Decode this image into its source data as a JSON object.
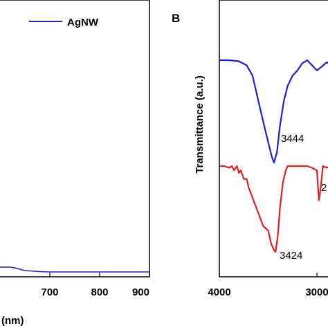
{
  "chart_data": [
    {
      "type": "line",
      "panel": "A",
      "xlabel": "(nm)",
      "xlim": [
        600,
        900
      ],
      "xticks": [
        "700",
        "800",
        "900"
      ],
      "legend": {
        "placement": "top-right",
        "entries": [
          "AgNW"
        ]
      },
      "series": [
        {
          "name": "AgNW",
          "color": "#1f1fd0",
          "points": [
            [
              600,
              0.14
            ],
            [
              620,
              0.14
            ],
            [
              630,
              0.13
            ],
            [
              640,
              0.11
            ],
            [
              650,
              0.09
            ],
            [
              660,
              0.085
            ],
            [
              680,
              0.075
            ],
            [
              700,
              0.07
            ],
            [
              750,
              0.07
            ],
            [
              800,
              0.07
            ],
            [
              850,
              0.07
            ],
            [
              900,
              0.07
            ]
          ]
        }
      ]
    },
    {
      "type": "line",
      "panel": "B",
      "panel_label": "B",
      "ylabel": "Transmittance (a.u.)",
      "xlim": [
        4000,
        2800
      ],
      "xticks": [
        "4000",
        "3000"
      ],
      "annotations": [
        "3444",
        "3424",
        "2"
      ],
      "series": [
        {
          "color": "#1f1fd0",
          "points": [
            [
              4000,
              1.0
            ],
            [
              3900,
              1.0
            ],
            [
              3800,
              0.99
            ],
            [
              3720,
              0.95
            ],
            [
              3660,
              0.85
            ],
            [
              3600,
              0.6
            ],
            [
              3550,
              0.4
            ],
            [
              3500,
              0.2
            ],
            [
              3460,
              0.05
            ],
            [
              3440,
              0.0
            ],
            [
              3410,
              0.1
            ],
            [
              3380,
              0.35
            ],
            [
              3340,
              0.6
            ],
            [
              3300,
              0.75
            ],
            [
              3250,
              0.85
            ],
            [
              3200,
              0.9
            ],
            [
              3150,
              0.97
            ],
            [
              3100,
              1.0
            ],
            [
              3050,
              0.95
            ],
            [
              3000,
              0.9
            ],
            [
              2960,
              0.93
            ],
            [
              2900,
              0.98
            ],
            [
              2860,
              0.95
            ],
            [
              2820,
              0.97
            ]
          ]
        },
        {
          "color": "#e02020",
          "points": [
            [
              4000,
              1.0
            ],
            [
              3950,
              1.0
            ],
            [
              3900,
              0.98
            ],
            [
              3870,
              1.0
            ],
            [
              3850,
              0.95
            ],
            [
              3820,
              1.0
            ],
            [
              3800,
              0.92
            ],
            [
              3780,
              0.95
            ],
            [
              3750,
              0.85
            ],
            [
              3720,
              0.85
            ],
            [
              3700,
              0.75
            ],
            [
              3650,
              0.6
            ],
            [
              3600,
              0.45
            ],
            [
              3550,
              0.3
            ],
            [
              3500,
              0.25
            ],
            [
              3470,
              0.1
            ],
            [
              3440,
              0.02
            ],
            [
              3424,
              0.0
            ],
            [
              3400,
              0.2
            ],
            [
              3380,
              0.5
            ],
            [
              3350,
              0.8
            ],
            [
              3320,
              0.95
            ],
            [
              3300,
              1.0
            ],
            [
              3100,
              1.0
            ],
            [
              3050,
              0.98
            ],
            [
              3000,
              0.95
            ],
            [
              2980,
              0.6
            ],
            [
              2960,
              0.75
            ],
            [
              2940,
              1.0
            ],
            [
              2900,
              0.98
            ],
            [
              2870,
              1.0
            ],
            [
              2840,
              0.92
            ],
            [
              2820,
              1.0
            ]
          ]
        }
      ]
    }
  ]
}
